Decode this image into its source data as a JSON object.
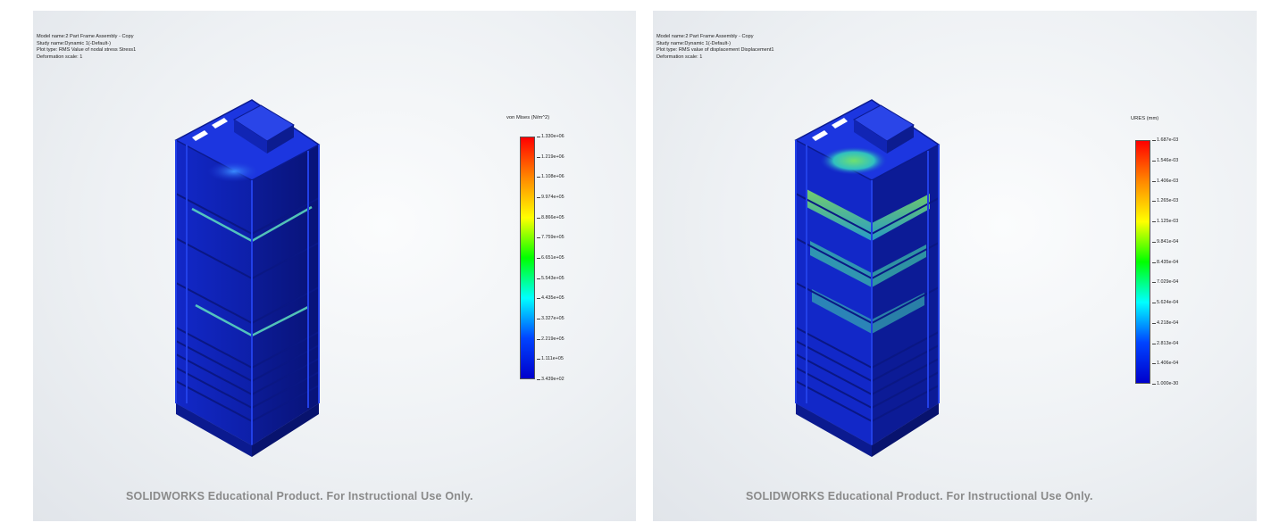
{
  "left_panel": {
    "header_lines": [
      "Model name:2 Part Frame Assembly - Copy",
      "Study name:Dynamic 1(-Default-)",
      "Plot type: RMS Value of nodal stress Stress1",
      "Deformation scale: 1"
    ],
    "legend_title": "von Mises (N/m^2)",
    "legend_ticks": [
      "1.330e+06",
      "1.219e+06",
      "1.108e+06",
      "9.974e+05",
      "8.866e+05",
      "7.759e+05",
      "6.651e+05",
      "5.543e+05",
      "4.435e+05",
      "3.327e+05",
      "2.219e+05",
      "1.111e+05",
      "3.439e+02"
    ],
    "watermark": "SOLIDWORKS Educational Product. For Instructional Use Only."
  },
  "right_panel": {
    "header_lines": [
      "Model name:2 Part Frame Assembly - Copy",
      "Study name:Dynamic 1(-Default-)",
      "Plot type: RMS value of displacement Displacement1",
      "Deformation scale: 1"
    ],
    "legend_title": "URES (mm)",
    "legend_ticks": [
      "1.687e-03",
      "1.546e-03",
      "1.406e-03",
      "1.265e-03",
      "1.125e-03",
      "9.841e-04",
      "8.435e-04",
      "7.029e-04",
      "5.624e-04",
      "4.218e-04",
      "2.813e-04",
      "1.406e-04",
      "1.000e-30"
    ],
    "watermark": "SOLIDWORKS Educational Product. For Instructional Use Only."
  },
  "colors": {
    "colormap": [
      "#ff0000",
      "#ff8800",
      "#ffff00",
      "#00ff00",
      "#00ffff",
      "#0044ff",
      "#0000cc"
    ],
    "model_blue": "#1a2fd6",
    "model_dark": "#0b1a8f",
    "stress_highlight": "#5fe0c0",
    "displacement_highlight": "#7fe060"
  },
  "icons": [
    "frame-assembly-model"
  ]
}
